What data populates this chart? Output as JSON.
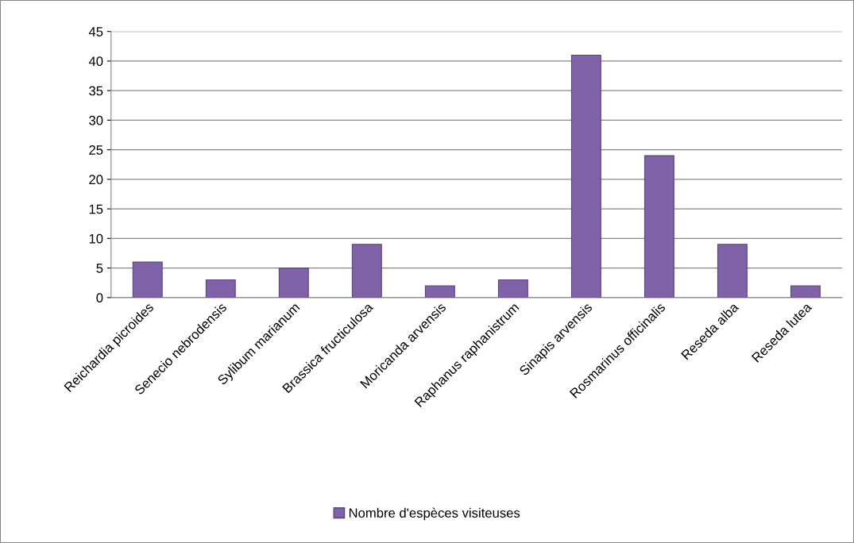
{
  "chart_data": {
    "type": "bar",
    "categories": [
      "Reichardia picroides",
      "Senecio nebrodensis",
      "Sylibum marianum",
      "Brassica fructiculosa",
      "Moricanda arvensis",
      "Raphanus raphanistrum",
      "Sinapis arvensis",
      "Rosmarinus officinalis",
      "Reseda alba",
      "Reseda lutea"
    ],
    "series": [
      {
        "name": "Nombre d'espèces visiteuses",
        "color": "#7f62a8",
        "values": [
          6,
          3,
          5,
          9,
          2,
          3,
          41,
          24,
          9,
          2
        ]
      }
    ],
    "ylim": [
      0,
      45
    ],
    "yticks": [
      0,
      5,
      10,
      15,
      20,
      25,
      30,
      35,
      40,
      45
    ],
    "grid": "y",
    "legend": "bottom"
  }
}
